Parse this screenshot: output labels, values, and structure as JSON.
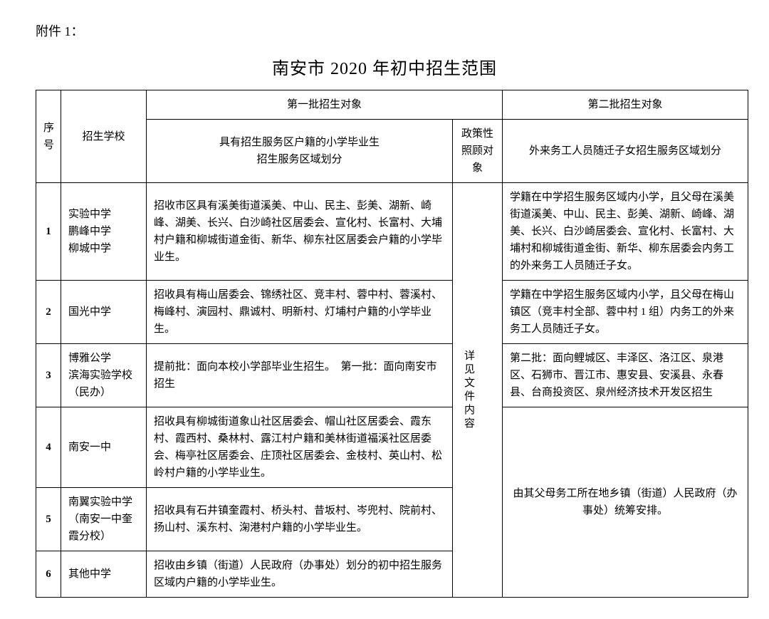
{
  "attachment_label": "附件 1：",
  "title": "南安市 2020 年初中招生范围",
  "headers": {
    "seq": "序号",
    "school": "招生学校",
    "batch1_title": "第一批招生对象",
    "batch1_sub": "具有招生服务区户籍的小学毕业生\n招生服务区域划分",
    "policy": "政策性照顾对象",
    "batch2_title": "第二批招生对象",
    "batch2_sub": "外来务工人员随迁子女招生服务区域划分"
  },
  "policy_text": "详见文件内容",
  "rows": [
    {
      "num": "1",
      "school": "实验中学\n鹏峰中学\n柳城中学",
      "batch1": "招收市区具有溪美街道溪美、中山、民主、彭美、湖新、崎峰、湖美、长兴、白沙崎社区居委会、宣化村、长富村、大埔村户籍和柳城街道金街、新华、柳东社区居委会户籍的小学毕业生。",
      "batch2": "学籍在中学招生服务区域内小学，且父母在溪美街道溪美、中山、民主、彭美、湖新、崎峰、湖美、长兴、白沙崎居委会、宣化村、长富村、大埔村和柳城街道金街、新华、柳东居委会内务工的外来务工人员随迁子女。"
    },
    {
      "num": "2",
      "school": "国光中学",
      "batch1": "招收具有梅山居委会、锦绣社区、竞丰村、蓉中村、蓉溪村、梅峰村、演园村、鼎诚村、明新村、灯埔村户籍的小学毕业生。",
      "batch2": "学籍在中学招生服务区域内小学，且父母在梅山镇区（竞丰村全部、蓉中村 1 组）内务工的外来务工人员随迁子女。"
    },
    {
      "num": "3",
      "school": "博雅公学\n滨海实验学校（民办）",
      "batch1": "提前批：面向本校小学部毕业生招生。　第一批：面向南安市招生",
      "batch2": "第二批：面向鲤城区、丰泽区、洛江区、泉港区、石狮市、晋江市、惠安县、安溪县、永春县、台商投资区、泉州经济技术开发区招生"
    },
    {
      "num": "4",
      "school": "南安一中",
      "batch1": "招收具有柳城街道象山社区居委会、帽山社区居委会、霞东村、霞西村、桑林村、露江村户籍和美林街道福溪社区居委会、梅亭社区居委会、庄顶社区居委会、金枝村、英山村、松岭村户籍的小学毕业生。",
      "batch2_merged": "由其父母务工所在地乡镇（街道）人民政府（办事处）统筹安排。"
    },
    {
      "num": "5",
      "school": "南翼实验中学（南安一中奎霞分校）",
      "batch1": "招收具有石井镇奎霞村、桥头村、昔坂村、岑兜村、院前村、扬山村、溪东村、淗港村户籍的小学毕业生。"
    },
    {
      "num": "6",
      "school": "其他中学",
      "batch1": "招收由乡镇（街道）人民政府（办事处）划分的初中招生服务区域内户籍的小学毕业生。"
    }
  ]
}
